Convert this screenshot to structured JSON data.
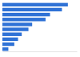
{
  "chart_data": {
    "type": "bar",
    "orientation": "horizontal",
    "categories": [
      null,
      null,
      null,
      null,
      null,
      null,
      null,
      null,
      null,
      null
    ],
    "values": [
      88,
      80,
      64,
      58,
      40,
      35,
      26,
      21,
      16,
      8
    ],
    "color": "#2f72d6",
    "xlim": [
      0,
      100
    ],
    "tick_labels": false,
    "grid": false
  }
}
